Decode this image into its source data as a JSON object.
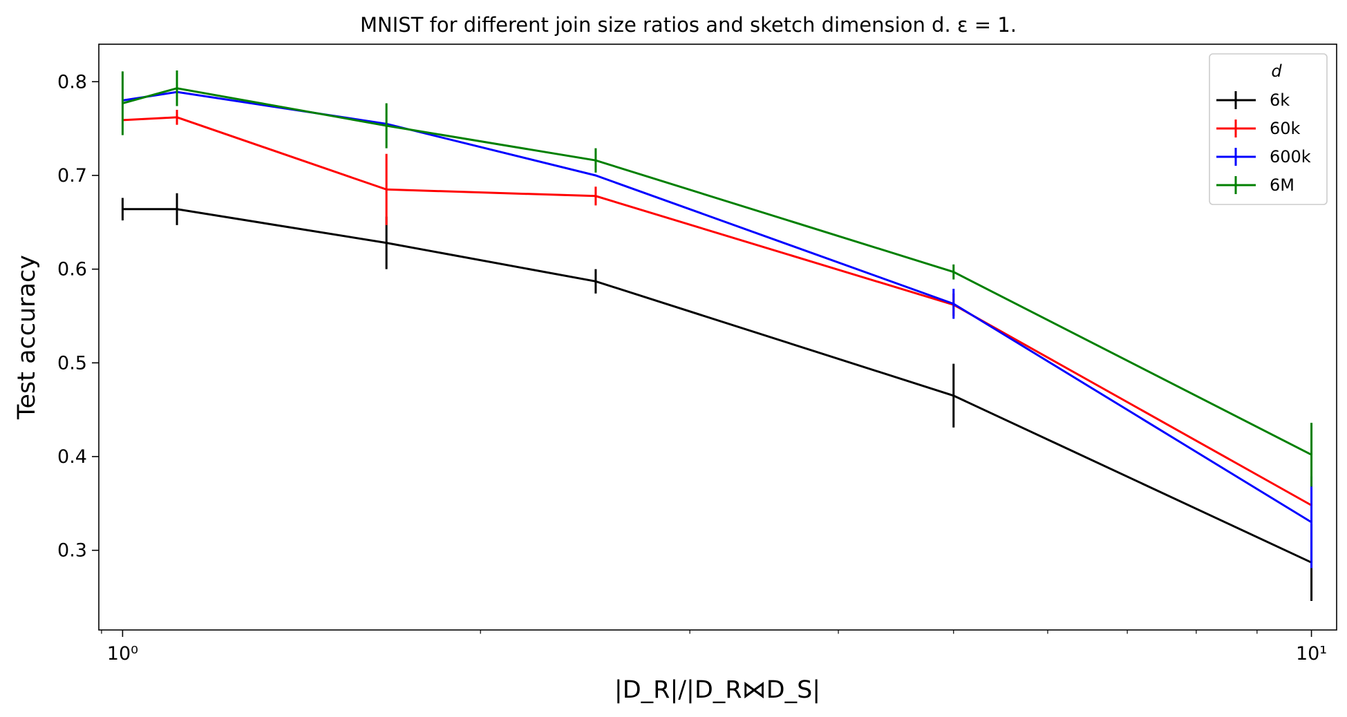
{
  "chart_data": {
    "type": "line",
    "title": "MNIST for different join size ratios and sketch dimension d. ε = 1.",
    "xlabel": "|D_R|/|D_R⋈D_S|",
    "ylabel": "Test accuracy",
    "x_scale": "log",
    "xlim": [
      0.955,
      10.5
    ],
    "ylim": [
      0.215,
      0.84
    ],
    "x_major_ticks": [
      {
        "value": 1,
        "label": "10⁰"
      },
      {
        "value": 10,
        "label": "10¹"
      }
    ],
    "x_minor_ticks": [
      0.96,
      2,
      3,
      4,
      5,
      6,
      7,
      8,
      9
    ],
    "y_ticks": [
      {
        "value": 0.3,
        "label": "0.3"
      },
      {
        "value": 0.4,
        "label": "0.4"
      },
      {
        "value": 0.5,
        "label": "0.5"
      },
      {
        "value": 0.6,
        "label": "0.6"
      },
      {
        "value": 0.7,
        "label": "0.7"
      },
      {
        "value": 0.8,
        "label": "0.8"
      }
    ],
    "grid": false,
    "legend": {
      "title": "d",
      "placement": "top-right"
    },
    "x": [
      1,
      1.111,
      1.667,
      2.5,
      5,
      10
    ],
    "series": [
      {
        "name": "6k",
        "color": "#000000",
        "values": [
          0.664,
          0.664,
          0.628,
          0.587,
          0.465,
          0.287
        ],
        "errors": [
          0.012,
          0.017,
          0.028,
          0.013,
          0.034,
          0.041
        ]
      },
      {
        "name": "60k",
        "color": "#ff0000",
        "values": [
          0.759,
          0.762,
          0.685,
          0.678,
          0.562,
          0.348
        ],
        "errors": [
          0.0,
          0.008,
          0.038,
          0.01,
          0.012,
          0.0
        ]
      },
      {
        "name": "600k",
        "color": "#0000ff",
        "values": [
          0.78,
          0.789,
          0.755,
          0.7,
          0.563,
          0.33
        ],
        "errors": [
          0.0,
          0.0,
          0.0,
          0.0,
          0.016,
          0.049
        ]
      },
      {
        "name": "6M",
        "color": "#008000",
        "values": [
          0.777,
          0.793,
          0.753,
          0.716,
          0.597,
          0.402
        ],
        "errors": [
          0.034,
          0.019,
          0.024,
          0.013,
          0.008,
          0.034
        ]
      }
    ]
  }
}
